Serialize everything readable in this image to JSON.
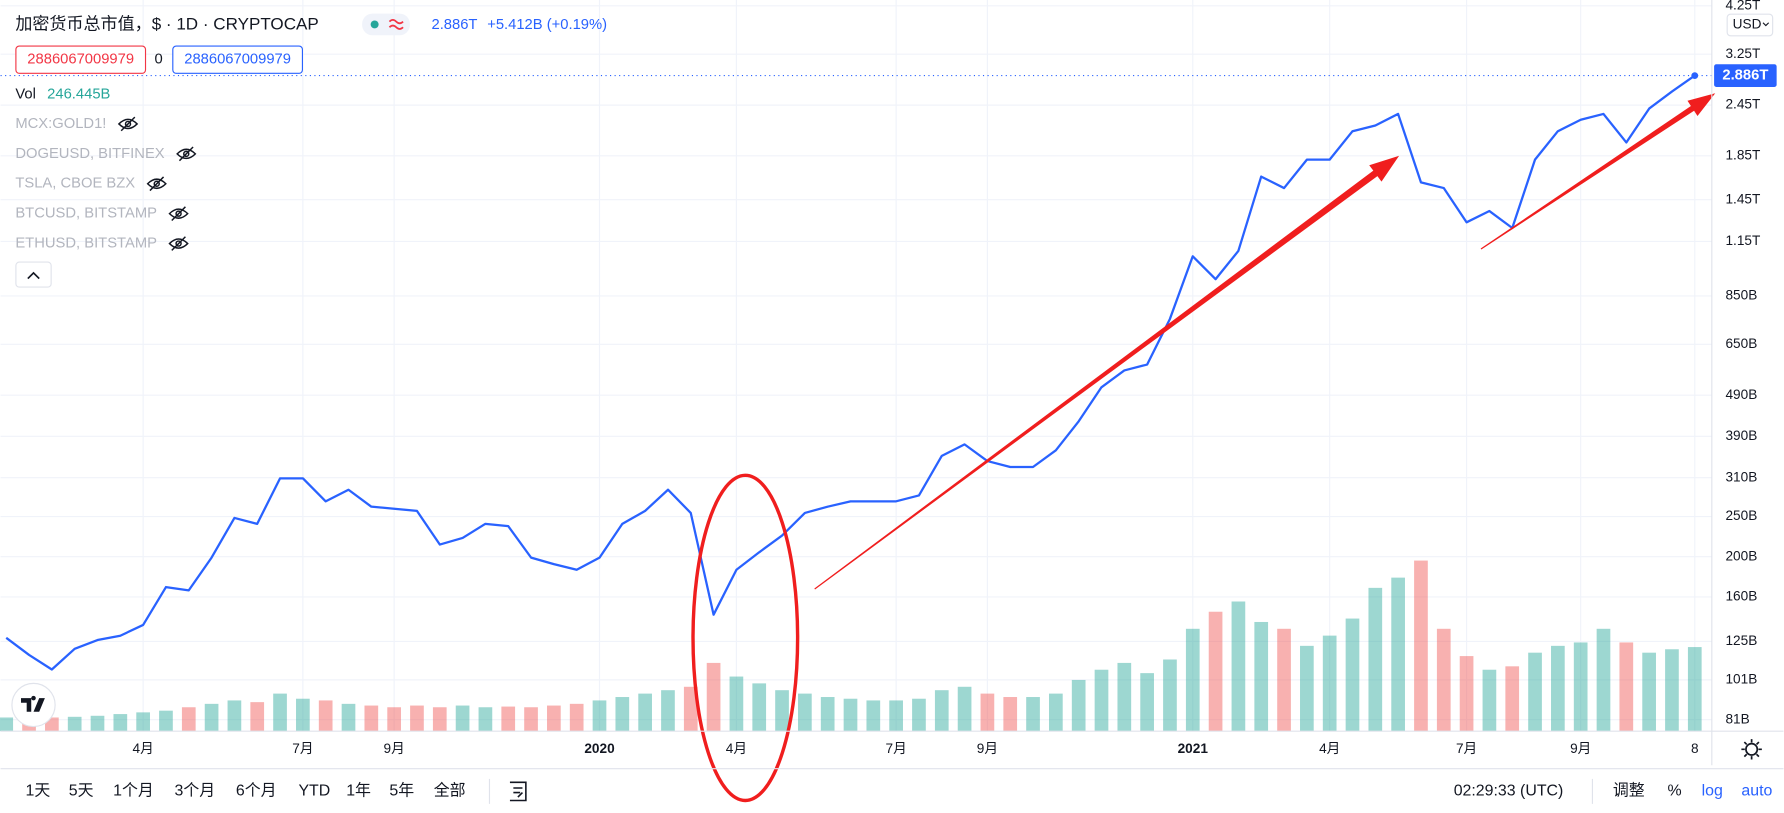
{
  "ui": {
    "symbol_title": "加密货币总市值，$ · 1D · CRYPTOCAP",
    "quote": "2.886T",
    "change": "+5.412B (+0.19%)",
    "sell": "2886067009979",
    "spread": "0",
    "buy": "2886067009979",
    "vol_label": "Vol",
    "vol_value": "246.445B",
    "hidden_symbols": [
      "MCX:GOLD1!",
      "DOGEUSD, BITFINEX",
      "TSLA, CBOE BZX",
      "BTCUSD, BITSTAMP",
      "ETHUSD, BITSTAMP"
    ],
    "currency": "USD",
    "range_buttons": [
      "1天",
      "5天",
      "1个月",
      "3个月",
      "6个月",
      "YTD",
      "1年",
      "5年",
      "全部"
    ],
    "clock": "02:29:33 (UTC)",
    "adjust": "调整",
    "percent": "%",
    "log": "log",
    "auto": "auto"
  },
  "chart_data": {
    "type": "line",
    "log_scale": true,
    "grid": true,
    "categories": [
      null,
      null,
      null,
      null,
      null,
      null,
      "4月",
      null,
      null,
      null,
      null,
      null,
      null,
      "7月",
      null,
      null,
      null,
      "9月",
      null,
      null,
      null,
      null,
      null,
      null,
      null,
      null,
      "2020",
      null,
      null,
      null,
      null,
      null,
      "4月",
      null,
      null,
      null,
      null,
      null,
      null,
      "7月",
      null,
      null,
      null,
      "9月",
      null,
      null,
      null,
      null,
      null,
      null,
      null,
      null,
      "2021",
      null,
      null,
      null,
      null,
      null,
      "4月",
      null,
      null,
      null,
      null,
      null,
      "7月",
      null,
      null,
      null,
      null,
      "9月",
      null,
      null,
      null,
      null,
      "8"
    ],
    "series": [
      {
        "color": "#2962ff",
        "values": [
          127.6,
          116,
          107,
          120,
          126,
          129,
          137,
          169,
          166,
          199,
          248,
          240,
          309,
          309,
          272,
          290,
          264,
          261,
          258,
          214,
          222,
          240,
          237,
          199,
          192,
          186,
          199,
          240,
          258,
          290,
          255,
          145,
          186,
          205,
          225,
          255,
          264,
          272,
          272,
          272,
          281,
          350,
          373,
          340,
          329,
          329,
          361,
          424,
          512,
          562,
          581,
          748,
          1059,
          933,
          1091,
          1648,
          1546,
          1811,
          1811,
          2120,
          2188,
          2333,
          1596,
          1546,
          1279,
          1361,
          1239,
          1811,
          2120,
          2259,
          2333,
          1991,
          2404,
          2642,
          2886
        ],
        "value_labels": [
          null,
          null,
          null,
          null,
          null,
          null,
          null,
          null,
          null,
          null,
          null,
          null,
          null,
          null,
          null,
          null,
          null,
          null,
          null,
          null,
          null,
          null,
          null,
          null,
          null,
          null,
          null,
          null,
          null,
          null,
          null,
          null,
          null,
          null,
          null,
          null,
          null,
          null,
          null,
          null,
          null,
          null,
          null,
          null,
          null,
          null,
          null,
          null,
          null,
          null,
          null,
          null,
          null,
          null,
          null,
          null,
          null,
          null,
          null,
          null,
          null,
          null,
          null,
          null,
          null,
          null,
          null,
          null,
          null,
          null,
          null,
          null,
          null,
          null,
          "2.886T"
        ]
      }
    ],
    "volume": {
      "up_color": "#26a69a",
      "down_color": "#ef5350",
      "values": [
        40,
        45,
        40,
        42,
        45,
        50,
        55,
        60,
        70,
        80,
        90,
        85,
        110,
        95,
        90,
        80,
        75,
        70,
        75,
        70,
        75,
        70,
        72,
        70,
        75,
        80,
        90,
        100,
        110,
        120,
        130,
        200,
        160,
        140,
        120,
        110,
        100,
        95,
        90,
        90,
        95,
        120,
        130,
        110,
        100,
        100,
        110,
        150,
        180,
        200,
        170,
        210,
        300,
        350,
        380,
        320,
        300,
        250,
        280,
        330,
        420,
        450,
        500,
        300,
        220,
        180,
        190,
        230,
        250,
        260,
        300,
        260,
        230,
        240,
        246.445
      ]
    },
    "ylim": [
      76,
      4390
    ],
    "yticks": [
      {
        "value": 4250,
        "label": "4.25T"
      },
      {
        "value": 3250,
        "label": "3.25T"
      },
      {
        "value": 2450,
        "label": "2.45T"
      },
      {
        "value": 1850,
        "label": "1.85T"
      },
      {
        "value": 1450,
        "label": "1.45T"
      },
      {
        "value": 1150,
        "label": "1.15T"
      },
      {
        "value": 850,
        "label": "850B"
      },
      {
        "value": 650,
        "label": "650B"
      },
      {
        "value": 490,
        "label": "490B"
      },
      {
        "value": 390,
        "label": "390B"
      },
      {
        "value": 310,
        "label": "310B"
      },
      {
        "value": 250,
        "label": "250B"
      },
      {
        "value": 200,
        "label": "200B"
      },
      {
        "value": 160,
        "label": "160B"
      },
      {
        "value": 125,
        "label": "125B"
      },
      {
        "value": 101,
        "label": "101B"
      },
      {
        "value": 81,
        "label": "81B"
      }
    ]
  }
}
